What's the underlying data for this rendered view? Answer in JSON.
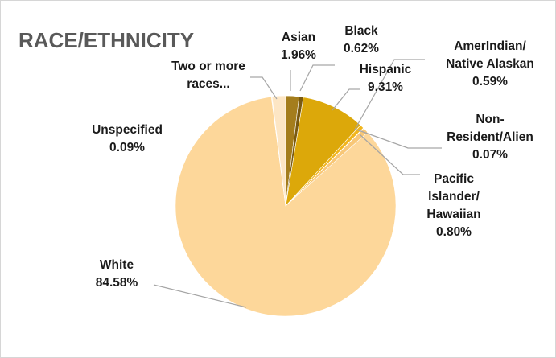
{
  "chart_data": {
    "type": "pie",
    "title": "RACE/ETHNICITY",
    "slices": [
      {
        "name": "Asian",
        "label_lines": [
          "Asian",
          "1.96%"
        ],
        "value": 1.96,
        "color": "#a47d1c"
      },
      {
        "name": "Black",
        "label_lines": [
          "Black",
          "0.62%"
        ],
        "value": 0.62,
        "color": "#7a5a10"
      },
      {
        "name": "Hispanic",
        "label_lines": [
          "Hispanic",
          "9.31%"
        ],
        "value": 9.31,
        "color": "#dca80a"
      },
      {
        "name": "AmerIndian/Native Alaskan",
        "label_lines": [
          "AmerIndian/",
          "Native Alaskan",
          "0.59%"
        ],
        "value": 0.59,
        "color": "#f1b51c"
      },
      {
        "name": "Non-Resident/Alien",
        "label_lines": [
          "Non-",
          "Resident/Alien",
          "0.07%"
        ],
        "value": 0.07,
        "color": "#e8a20a"
      },
      {
        "name": "Pacific Islander/Hawaiian",
        "label_lines": [
          "Pacific",
          "Islander/",
          "Hawaiian",
          "0.80%"
        ],
        "value": 0.8,
        "color": "#f8c777"
      },
      {
        "name": "White",
        "label_lines": [
          "White",
          "84.58%"
        ],
        "value": 84.58,
        "color": "#fdd79a"
      },
      {
        "name": "Unspecified",
        "label_lines": [
          "Unspecified",
          "0.09%"
        ],
        "value": 0.09,
        "color": "#f6ddb3"
      },
      {
        "name": "Two or more races",
        "label_lines": [
          "Two or more",
          "races..."
        ],
        "value": 1.98,
        "color": "#fde6c4"
      }
    ]
  }
}
